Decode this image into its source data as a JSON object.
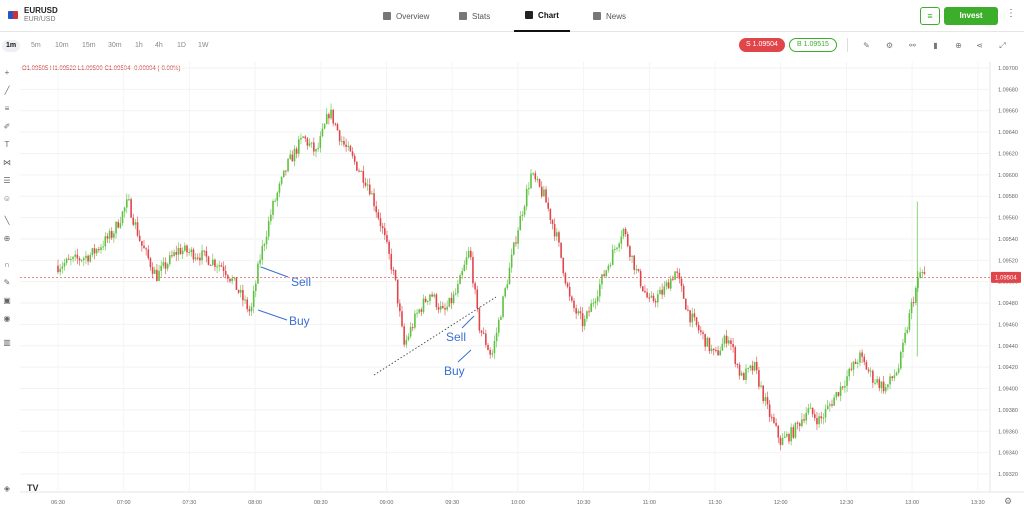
{
  "header": {
    "symbol": "EURUSD",
    "symbol_sub": "EUR/USD",
    "nav": [
      {
        "label": "Overview",
        "icon": "grid-icon"
      },
      {
        "label": "Stats",
        "icon": "stats-icon"
      },
      {
        "label": "Chart",
        "icon": "candle-icon",
        "active": true
      },
      {
        "label": "News",
        "icon": "news-icon"
      }
    ],
    "invest_label": "Invest",
    "accent_color": "#3dae2b"
  },
  "timeframes": [
    "1m",
    "5m",
    "10m",
    "15m",
    "30m",
    "1h",
    "4h",
    "1D",
    "1W"
  ],
  "prices": {
    "sell_label": "S 1.09504",
    "buy_label": "B 1.09515"
  },
  "ohlc": {
    "open": "O1.09505",
    "high": "H1.09522",
    "low": "L1.09500",
    "close": "C1.09504",
    "change": "-0.00004 (-0.00%)"
  },
  "chart_data": {
    "type": "candlestick",
    "symbol": "EURUSD",
    "interval": "1m",
    "x_ticks": [
      "06:30",
      "07:00",
      "07:30",
      "08:00",
      "08:30",
      "09:00",
      "09:30",
      "10:00",
      "10:30",
      "11:00",
      "11:30",
      "12:00",
      "12:30",
      "13:00",
      "13:30"
    ],
    "y_ticks": [
      "1.09700",
      "1.09680",
      "1.09660",
      "1.09640",
      "1.09620",
      "1.09600",
      "1.09580",
      "1.09560",
      "1.09540",
      "1.09520",
      "1.09500",
      "1.09480",
      "1.09460",
      "1.09440",
      "1.09420",
      "1.09400",
      "1.09380",
      "1.09360",
      "1.09340",
      "1.09320"
    ],
    "ylim": [
      1.0932,
      1.097
    ],
    "current_price": 1.09504,
    "current_price_label": "1.09504",
    "colors": {
      "up": "#5cc23f",
      "down": "#e0454a"
    },
    "close_path": [
      [
        "06:30",
        1.09515
      ],
      [
        "06:45",
        1.09525
      ],
      [
        "06:55",
        1.09545
      ],
      [
        "07:02",
        1.09575
      ],
      [
        "07:08",
        1.09535
      ],
      [
        "07:15",
        1.09505
      ],
      [
        "07:25",
        1.0953
      ],
      [
        "07:35",
        1.09525
      ],
      [
        "07:45",
        1.09515
      ],
      [
        "07:50",
        1.095
      ],
      [
        "07:58",
        1.0947
      ],
      [
        "08:02",
        1.0952
      ],
      [
        "08:08",
        1.0957
      ],
      [
        "08:15",
        1.0961
      ],
      [
        "08:22",
        1.09635
      ],
      [
        "08:28",
        1.0962
      ],
      [
        "08:34",
        1.0966
      ],
      [
        "08:40",
        1.0963
      ],
      [
        "08:46",
        1.0961
      ],
      [
        "08:52",
        1.0959
      ],
      [
        "08:58",
        1.0955
      ],
      [
        "09:04",
        1.095
      ],
      [
        "09:08",
        1.0944
      ],
      [
        "09:14",
        1.0947
      ],
      [
        "09:20",
        1.0949
      ],
      [
        "09:26",
        1.0947
      ],
      [
        "09:32",
        1.0949
      ],
      [
        "09:38",
        1.0953
      ],
      [
        "09:42",
        1.0946
      ],
      [
        "09:48",
        1.0943
      ],
      [
        "09:54",
        1.0949
      ],
      [
        "10:00",
        1.0955
      ],
      [
        "10:06",
        1.096
      ],
      [
        "10:12",
        1.0958
      ],
      [
        "10:18",
        1.0954
      ],
      [
        "10:24",
        1.0948
      ],
      [
        "10:30",
        1.0946
      ],
      [
        "10:36",
        1.0949
      ],
      [
        "10:42",
        1.0952
      ],
      [
        "10:48",
        1.0955
      ],
      [
        "10:54",
        1.0951
      ],
      [
        "11:00",
        1.0948
      ],
      [
        "11:06",
        1.0949
      ],
      [
        "11:12",
        1.0951
      ],
      [
        "11:18",
        1.0947
      ],
      [
        "11:24",
        1.0945
      ],
      [
        "11:30",
        1.0943
      ],
      [
        "11:36",
        1.0945
      ],
      [
        "11:42",
        1.0941
      ],
      [
        "11:48",
        1.0942
      ],
      [
        "11:54",
        1.0938
      ],
      [
        "12:00",
        1.0935
      ],
      [
        "12:06",
        1.0936
      ],
      [
        "12:12",
        1.0938
      ],
      [
        "12:18",
        1.0937
      ],
      [
        "12:24",
        1.0939
      ],
      [
        "12:30",
        1.0941
      ],
      [
        "12:36",
        1.0943
      ],
      [
        "12:42",
        1.0941
      ],
      [
        "12:48",
        1.094
      ],
      [
        "12:54",
        1.0942
      ],
      [
        "13:00",
        1.0948
      ],
      [
        "13:04",
        1.0951
      ],
      [
        "13:06",
        1.09504
      ]
    ],
    "annotations": [
      "Sell",
      "Buy",
      "Sell",
      "Buy"
    ]
  }
}
